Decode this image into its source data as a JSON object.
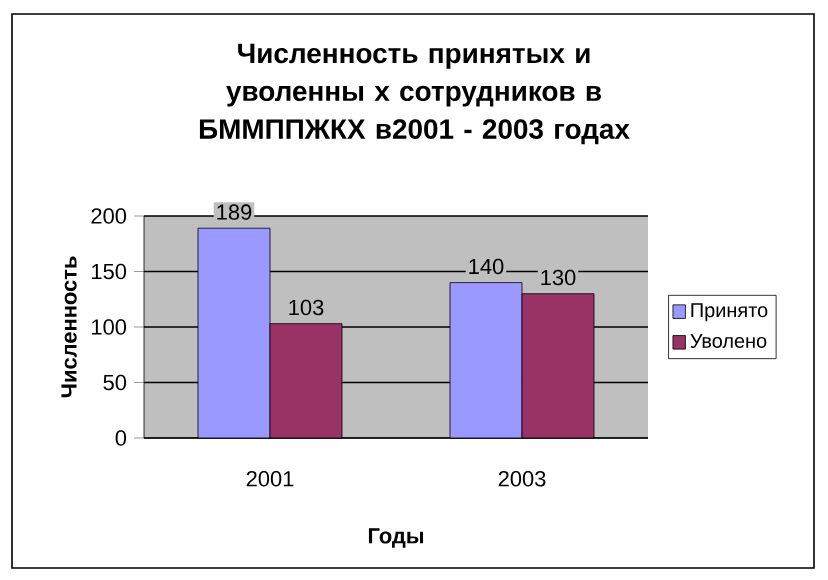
{
  "chart_data": {
    "type": "bar",
    "title": "Численность принятых и уволенны х сотрудников в БММППЖКХ в2001 - 2003 годах",
    "xlabel": "Годы",
    "ylabel": "Численность",
    "categories": [
      "2001",
      "2003"
    ],
    "series": [
      {
        "name": "Принято",
        "color": "#9999ff",
        "values": [
          189,
          140
        ]
      },
      {
        "name": "Уволено",
        "color": "#993366",
        "values": [
          103,
          130
        ]
      }
    ],
    "ylim": [
      0,
      200
    ],
    "yticks": [
      0,
      50,
      100,
      150,
      200
    ],
    "grid": "y",
    "legend": "right",
    "data_labels": true
  }
}
